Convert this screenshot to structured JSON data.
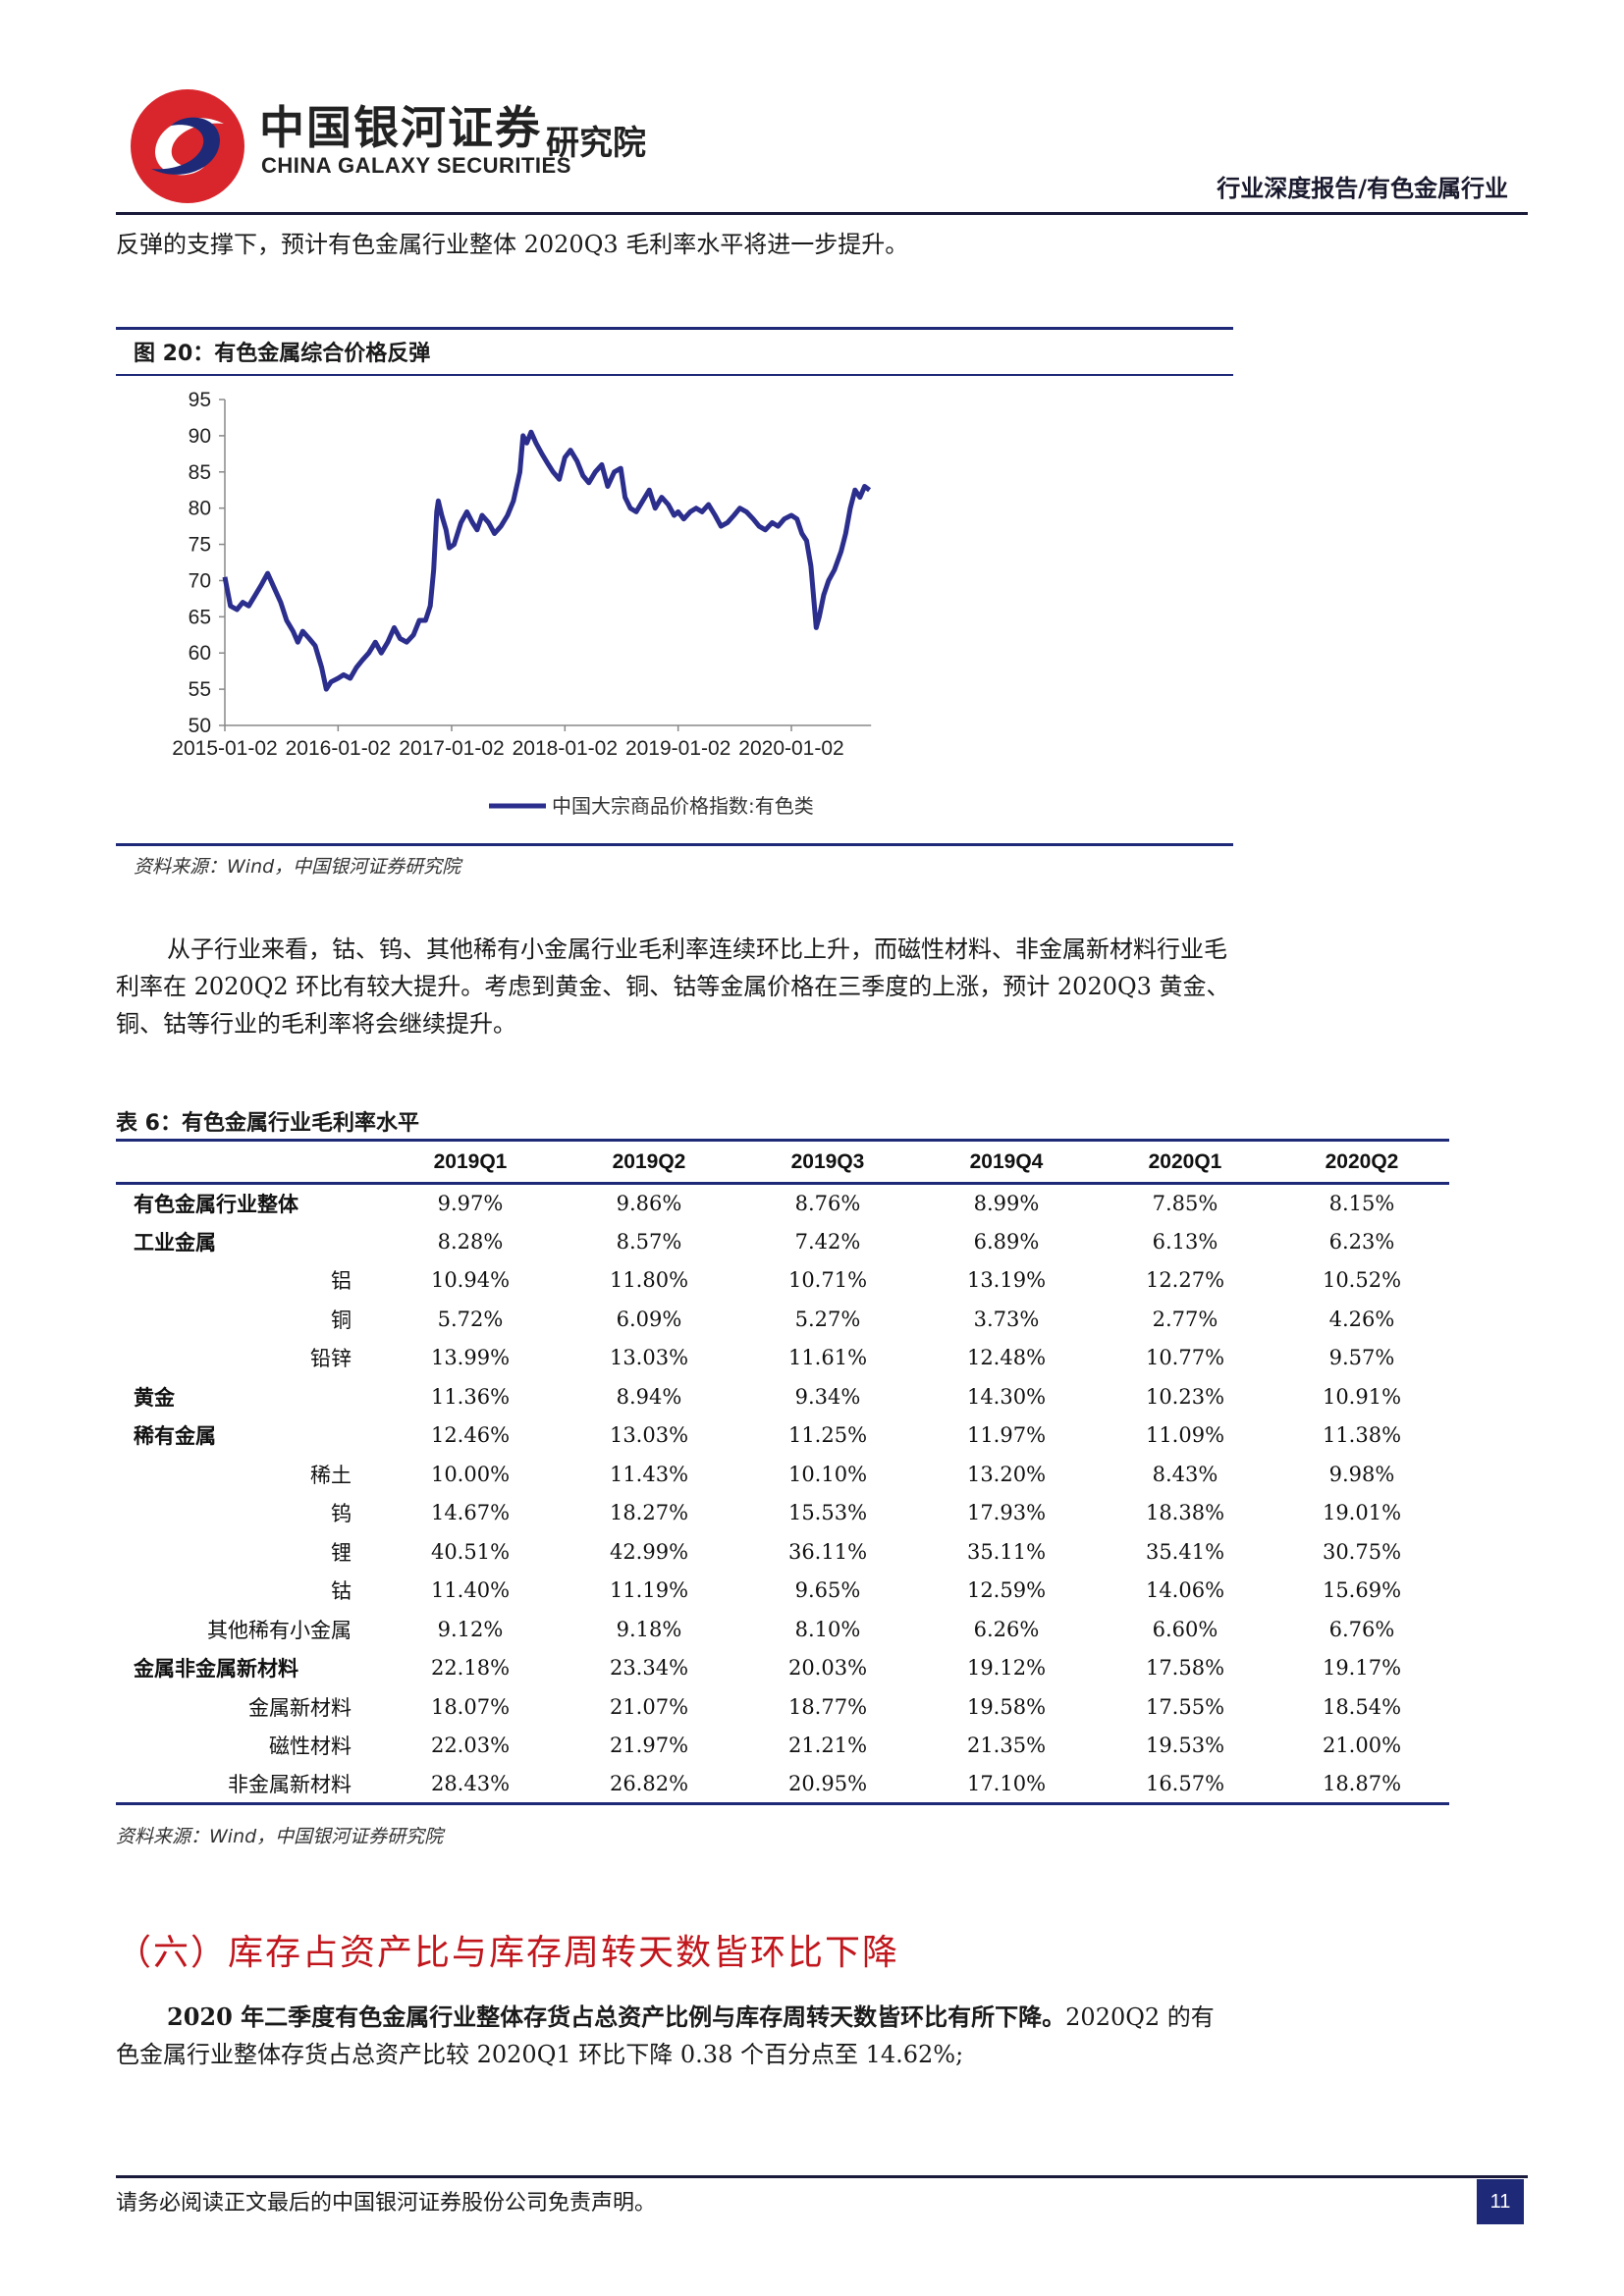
{
  "header": {
    "logo_cn": "中国银河证券",
    "logo_en": "CHINA GALAXY SECURITIES",
    "logo_institute": "研究院",
    "report_type": "行业深度报告/有色金属行业"
  },
  "intro_text": "反弹的支撑下，预计有色金属行业整体 2020Q3 毛利率水平将进一步提升。",
  "figure": {
    "caption": "图 20：有色金属综合价格反弹",
    "source": "资料来源：Wind，中国银河证券研究院",
    "line_color": "#2b2e8c"
  },
  "chart_data": {
    "type": "line",
    "x_ticks": [
      "2015-01-02",
      "2016-01-02",
      "2017-01-02",
      "2018-01-02",
      "2019-01-02",
      "2020-01-02"
    ],
    "y_ticks": [
      "95",
      "90",
      "85",
      "80",
      "75",
      "70",
      "65",
      "60",
      "55",
      "50"
    ],
    "ylim": [
      50,
      95
    ],
    "xlim": [
      "2015-01-02",
      "2020-09-15"
    ],
    "legend": "top-bottom-center",
    "series": [
      {
        "name": "中国大宗商品价格指数:有色类",
        "points": [
          [
            "2015-01-02",
            70.5
          ],
          [
            "2015-01-20",
            66.5
          ],
          [
            "2015-02-10",
            66.0
          ],
          [
            "2015-03-01",
            67.0
          ],
          [
            "2015-03-20",
            66.5
          ],
          [
            "2015-04-10",
            68.0
          ],
          [
            "2015-05-01",
            69.5
          ],
          [
            "2015-05-20",
            71.0
          ],
          [
            "2015-06-10",
            69.0
          ],
          [
            "2015-07-01",
            67.0
          ],
          [
            "2015-07-20",
            64.5
          ],
          [
            "2015-08-10",
            63.0
          ],
          [
            "2015-08-25",
            61.5
          ],
          [
            "2015-09-10",
            63.0
          ],
          [
            "2015-10-01",
            62.0
          ],
          [
            "2015-10-20",
            61.0
          ],
          [
            "2015-11-10",
            58.0
          ],
          [
            "2015-11-25",
            55.0
          ],
          [
            "2015-12-10",
            56.0
          ],
          [
            "2016-01-02",
            56.5
          ],
          [
            "2016-01-20",
            57.0
          ],
          [
            "2016-02-10",
            56.5
          ],
          [
            "2016-03-01",
            58.0
          ],
          [
            "2016-03-20",
            59.0
          ],
          [
            "2016-04-10",
            60.0
          ],
          [
            "2016-05-01",
            61.5
          ],
          [
            "2016-05-20",
            60.0
          ],
          [
            "2016-06-10",
            61.5
          ],
          [
            "2016-07-01",
            63.5
          ],
          [
            "2016-07-20",
            62.0
          ],
          [
            "2016-08-10",
            61.5
          ],
          [
            "2016-09-01",
            62.5
          ],
          [
            "2016-09-20",
            64.5
          ],
          [
            "2016-10-10",
            64.5
          ],
          [
            "2016-10-25",
            66.5
          ],
          [
            "2016-11-05",
            71.5
          ],
          [
            "2016-11-15",
            79.5
          ],
          [
            "2016-11-20",
            81.0
          ],
          [
            "2016-12-01",
            79.0
          ],
          [
            "2016-12-15",
            77.0
          ],
          [
            "2016-12-25",
            74.5
          ],
          [
            "2017-01-10",
            75.0
          ],
          [
            "2017-02-01",
            78.0
          ],
          [
            "2017-02-20",
            79.5
          ],
          [
            "2017-03-10",
            78.0
          ],
          [
            "2017-03-25",
            77.0
          ],
          [
            "2017-04-10",
            79.0
          ],
          [
            "2017-05-01",
            78.0
          ],
          [
            "2017-05-20",
            76.5
          ],
          [
            "2017-06-10",
            77.5
          ],
          [
            "2017-07-01",
            79.0
          ],
          [
            "2017-07-20",
            81.0
          ],
          [
            "2017-08-10",
            85.0
          ],
          [
            "2017-08-20",
            90.0
          ],
          [
            "2017-09-01",
            89.0
          ],
          [
            "2017-09-15",
            90.5
          ],
          [
            "2017-10-01",
            89.0
          ],
          [
            "2017-10-20",
            87.5
          ],
          [
            "2017-11-10",
            86.0
          ],
          [
            "2017-11-25",
            85.0
          ],
          [
            "2017-12-15",
            84.0
          ],
          [
            "2018-01-02",
            87.0
          ],
          [
            "2018-01-20",
            88.0
          ],
          [
            "2018-02-10",
            86.5
          ],
          [
            "2018-03-01",
            84.5
          ],
          [
            "2018-03-20",
            83.5
          ],
          [
            "2018-04-10",
            85.0
          ],
          [
            "2018-05-01",
            86.0
          ],
          [
            "2018-05-20",
            83.0
          ],
          [
            "2018-06-10",
            85.0
          ],
          [
            "2018-07-01",
            85.5
          ],
          [
            "2018-07-15",
            81.5
          ],
          [
            "2018-08-01",
            80.0
          ],
          [
            "2018-08-20",
            79.5
          ],
          [
            "2018-09-10",
            81.0
          ],
          [
            "2018-10-01",
            82.5
          ],
          [
            "2018-10-20",
            80.0
          ],
          [
            "2018-11-10",
            81.5
          ],
          [
            "2018-12-01",
            80.5
          ],
          [
            "2018-12-20",
            79.0
          ],
          [
            "2019-01-02",
            79.5
          ],
          [
            "2019-01-20",
            78.5
          ],
          [
            "2019-02-10",
            79.5
          ],
          [
            "2019-03-01",
            80.0
          ],
          [
            "2019-03-20",
            79.5
          ],
          [
            "2019-04-10",
            80.5
          ],
          [
            "2019-05-01",
            79.0
          ],
          [
            "2019-05-20",
            77.5
          ],
          [
            "2019-06-10",
            78.0
          ],
          [
            "2019-07-01",
            79.0
          ],
          [
            "2019-07-20",
            80.0
          ],
          [
            "2019-08-10",
            79.5
          ],
          [
            "2019-09-01",
            78.5
          ],
          [
            "2019-09-20",
            77.5
          ],
          [
            "2019-10-10",
            77.0
          ],
          [
            "2019-11-01",
            78.0
          ],
          [
            "2019-11-20",
            77.5
          ],
          [
            "2019-12-10",
            78.5
          ],
          [
            "2020-01-02",
            79.0
          ],
          [
            "2020-01-20",
            78.5
          ],
          [
            "2020-02-05",
            76.5
          ],
          [
            "2020-02-20",
            75.5
          ],
          [
            "2020-03-05",
            72.0
          ],
          [
            "2020-03-15",
            67.0
          ],
          [
            "2020-03-22",
            63.5
          ],
          [
            "2020-04-01",
            65.0
          ],
          [
            "2020-04-15",
            68.0
          ],
          [
            "2020-05-01",
            70.0
          ],
          [
            "2020-05-20",
            71.5
          ],
          [
            "2020-06-10",
            74.0
          ],
          [
            "2020-06-25",
            76.5
          ],
          [
            "2020-07-10",
            80.0
          ],
          [
            "2020-07-25",
            82.5
          ],
          [
            "2020-08-10",
            81.5
          ],
          [
            "2020-08-25",
            83.0
          ],
          [
            "2020-09-10",
            82.5
          ]
        ]
      }
    ]
  },
  "para2": "从子行业来看，钴、钨、其他稀有小金属行业毛利率连续环比上升，而磁性材料、非金属新材料行业毛利率在 2020Q2 环比有较大提升。考虑到黄金、铜、钴等金属价格在三季度的上涨，预计 2020Q3 黄金、铜、钴等行业的毛利率将会继续提升。",
  "table": {
    "caption": "表 6：有色金属行业毛利率水平",
    "source": "资料来源：Wind，中国银河证券研究院",
    "headers": [
      "",
      "2019Q1",
      "2019Q2",
      "2019Q3",
      "2019Q4",
      "2020Q1",
      "2020Q2"
    ],
    "rows": [
      {
        "label": "有色金属行业整体",
        "level": "main",
        "values": [
          "9.97%",
          "9.86%",
          "8.76%",
          "8.99%",
          "7.85%",
          "8.15%"
        ]
      },
      {
        "label": "工业金属",
        "level": "main",
        "values": [
          "8.28%",
          "8.57%",
          "7.42%",
          "6.89%",
          "6.13%",
          "6.23%"
        ]
      },
      {
        "label": "铝",
        "level": "sub",
        "values": [
          "10.94%",
          "11.80%",
          "10.71%",
          "13.19%",
          "12.27%",
          "10.52%"
        ]
      },
      {
        "label": "铜",
        "level": "sub",
        "values": [
          "5.72%",
          "6.09%",
          "5.27%",
          "3.73%",
          "2.77%",
          "4.26%"
        ]
      },
      {
        "label": "铅锌",
        "level": "sub",
        "values": [
          "13.99%",
          "13.03%",
          "11.61%",
          "12.48%",
          "10.77%",
          "9.57%"
        ]
      },
      {
        "label": "黄金",
        "level": "main",
        "values": [
          "11.36%",
          "8.94%",
          "9.34%",
          "14.30%",
          "10.23%",
          "10.91%"
        ]
      },
      {
        "label": "稀有金属",
        "level": "main",
        "values": [
          "12.46%",
          "13.03%",
          "11.25%",
          "11.97%",
          "11.09%",
          "11.38%"
        ]
      },
      {
        "label": "稀土",
        "level": "sub",
        "values": [
          "10.00%",
          "11.43%",
          "10.10%",
          "13.20%",
          "8.43%",
          "9.98%"
        ]
      },
      {
        "label": "钨",
        "level": "sub",
        "values": [
          "14.67%",
          "18.27%",
          "15.53%",
          "17.93%",
          "18.38%",
          "19.01%"
        ]
      },
      {
        "label": "锂",
        "level": "sub",
        "values": [
          "40.51%",
          "42.99%",
          "36.11%",
          "35.11%",
          "35.41%",
          "30.75%"
        ]
      },
      {
        "label": "钴",
        "level": "sub",
        "values": [
          "11.40%",
          "11.19%",
          "9.65%",
          "12.59%",
          "14.06%",
          "15.69%"
        ]
      },
      {
        "label": "其他稀有小金属",
        "level": "sub",
        "values": [
          "9.12%",
          "9.18%",
          "8.10%",
          "6.26%",
          "6.60%",
          "6.76%"
        ]
      },
      {
        "label": "金属非金属新材料",
        "level": "main",
        "values": [
          "22.18%",
          "23.34%",
          "20.03%",
          "19.12%",
          "17.58%",
          "19.17%"
        ]
      },
      {
        "label": "金属新材料",
        "level": "sub",
        "values": [
          "18.07%",
          "21.07%",
          "18.77%",
          "19.58%",
          "17.55%",
          "18.54%"
        ]
      },
      {
        "label": "磁性材料",
        "level": "sub",
        "values": [
          "22.03%",
          "21.97%",
          "21.21%",
          "21.35%",
          "19.53%",
          "21.00%"
        ]
      },
      {
        "label": "非金属新材料",
        "level": "sub",
        "values": [
          "28.43%",
          "26.82%",
          "20.95%",
          "17.10%",
          "16.57%",
          "18.87%"
        ]
      }
    ]
  },
  "section": {
    "heading": "（六）库存占资产比与库存周转天数皆环比下降",
    "bold_lead": "2020 年二季度有色金属行业整体存货占总资产比例与库存周转天数皆环比有所下降。",
    "body": "2020Q2 的有色金属行业整体存货占总资产比较 2020Q1 环比下降 0.38 个百分点至 14.62%;"
  },
  "footer": {
    "disclaimer": "请务必阅读正文最后的中国银河证券股份公司免责声明。",
    "page_number": "11"
  }
}
